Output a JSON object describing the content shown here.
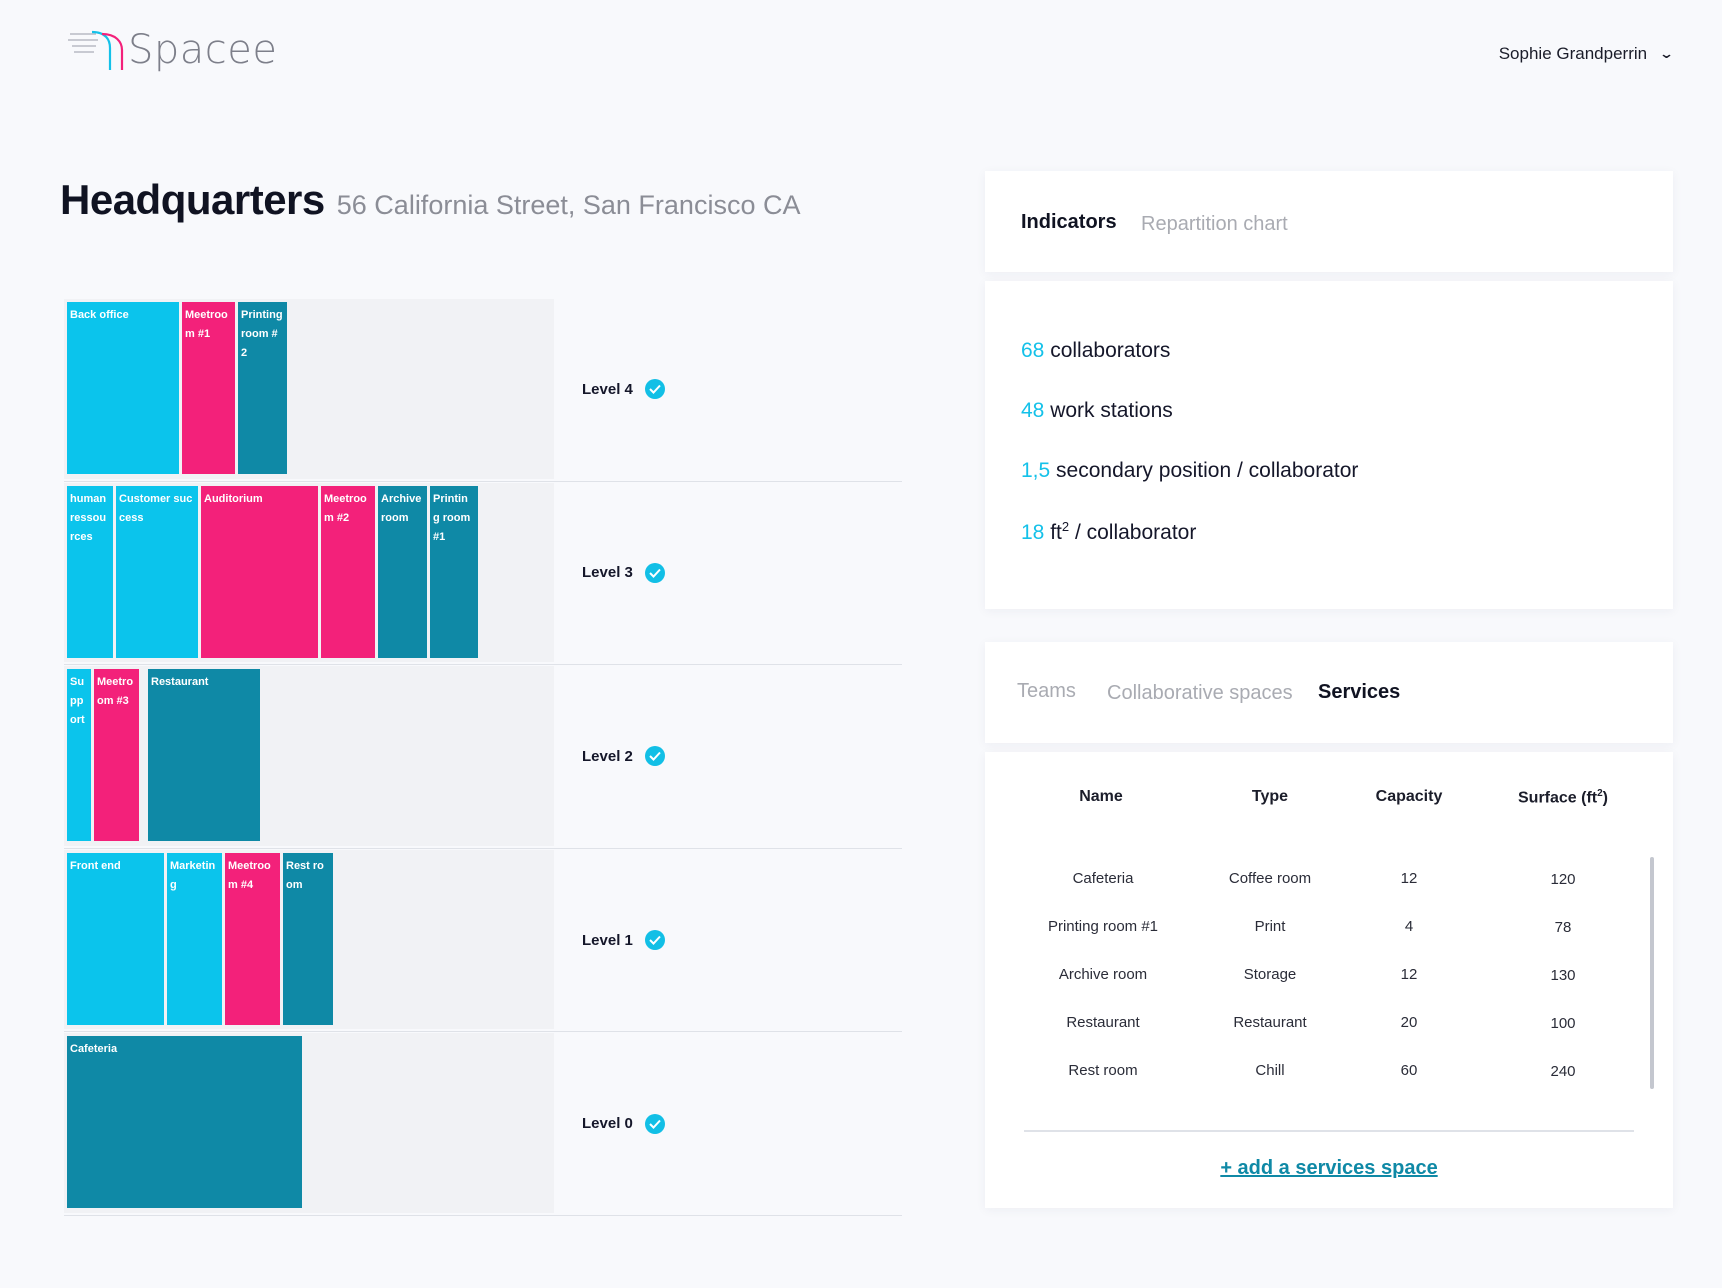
{
  "app": {
    "logo_text": "Spacee"
  },
  "header": {
    "user_name": "Sophie Grandperrin"
  },
  "page": {
    "title": "Headquarters",
    "address": "56 California Street, San Francisco CA"
  },
  "floors": [
    {
      "level": "Level 4",
      "validated": true,
      "rooms": [
        {
          "name": "Back office",
          "kind": "team"
        },
        {
          "name": "Meetroom #1",
          "kind": "collaborative"
        },
        {
          "name": "Printing room #2",
          "kind": "service"
        }
      ]
    },
    {
      "level": "Level 3",
      "validated": true,
      "rooms": [
        {
          "name": "human ressources",
          "kind": "team"
        },
        {
          "name": "Customer success",
          "kind": "team"
        },
        {
          "name": "Auditorium",
          "kind": "collaborative"
        },
        {
          "name": "Meetroom #2",
          "kind": "collaborative"
        },
        {
          "name": "Archive room",
          "kind": "service"
        },
        {
          "name": "Printing room #1",
          "kind": "service"
        }
      ]
    },
    {
      "level": "Level 2",
      "validated": true,
      "rooms": [
        {
          "name": "Support",
          "kind": "team"
        },
        {
          "name": "Meetroom #3",
          "kind": "collaborative"
        },
        {
          "name": "Restaurant",
          "kind": "service"
        }
      ]
    },
    {
      "level": "Level 1",
      "validated": true,
      "rooms": [
        {
          "name": "Front end",
          "kind": "team"
        },
        {
          "name": "Marketing",
          "kind": "team"
        },
        {
          "name": "Meetroom #4",
          "kind": "collaborative"
        },
        {
          "name": "Rest room",
          "kind": "service"
        }
      ]
    },
    {
      "level": "Level 0",
      "validated": true,
      "rooms": [
        {
          "name": "Cafeteria",
          "kind": "service"
        }
      ]
    }
  ],
  "indicator_tabs": {
    "active": "Indicators",
    "inactive": "Repartition chart"
  },
  "indicators": [
    {
      "value": "68",
      "label": "collaborators"
    },
    {
      "value": "48",
      "label": "work stations"
    },
    {
      "value": "1,5",
      "label": "secondary position / collaborator"
    },
    {
      "value": "18",
      "label_pre": "ft",
      "label_sup": "2",
      "label": "/ collaborator"
    }
  ],
  "space_tabs": {
    "teams": "Teams",
    "collaborative": "Collaborative spaces",
    "services": "Services",
    "active": "Services"
  },
  "services_table": {
    "columns": {
      "name": "Name",
      "type": "Type",
      "capacity": "Capacity",
      "surface": "Surface (ft",
      "surface_sup": "2",
      "surface_end": ")"
    },
    "rows": [
      {
        "name": "Cafeteria",
        "type": "Coffee room",
        "capacity": "12",
        "surface": "120"
      },
      {
        "name": "Printing room #1",
        "type": "Print",
        "capacity": "4",
        "surface": "78"
      },
      {
        "name": "Archive room",
        "type": "Storage",
        "capacity": "12",
        "surface": "130"
      },
      {
        "name": "Restaurant",
        "type": "Restaurant",
        "capacity": "20",
        "surface": "100"
      },
      {
        "name": "Rest room",
        "type": "Chill",
        "capacity": "60",
        "surface": "240"
      }
    ],
    "add_label": "+ add a services space"
  },
  "colors": {
    "team": "#0bc4ec",
    "collaborative": "#f3217a",
    "service": "#0f89a6",
    "accent": "#14c1e9"
  }
}
